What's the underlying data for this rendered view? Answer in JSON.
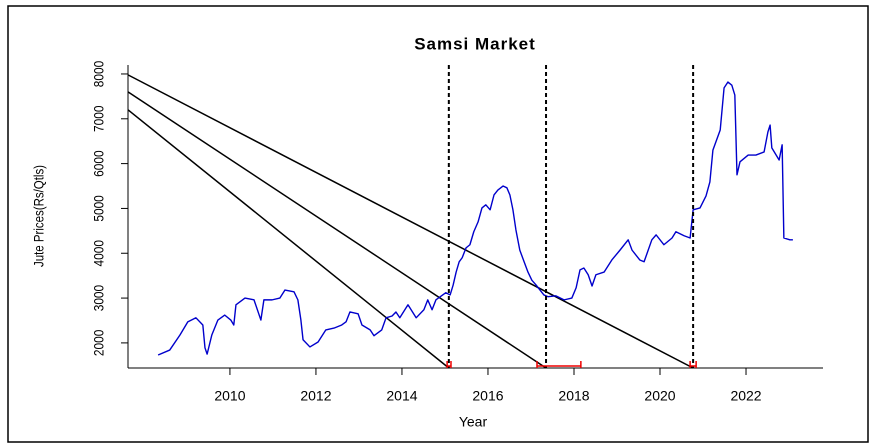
{
  "chart_data": {
    "type": "line",
    "title": "Samsi Market",
    "x_label": "Year",
    "y_label": "Jute Prices(Rs/Qtls)",
    "xlim": [
      2007.63,
      2023.79
    ],
    "ylim": [
      1440,
      8200
    ],
    "xticks": [
      2010,
      2012,
      2014,
      2016,
      2018,
      2020,
      2022
    ],
    "yticks": [
      2000,
      3000,
      4000,
      5000,
      6000,
      7000,
      8000
    ],
    "grid": false,
    "series": [
      {
        "color": "#0000cc",
        "x": [
          2008.33,
          2008.6,
          2008.84,
          2009.02,
          2009.21,
          2009.37,
          2009.42,
          2009.47,
          2009.58,
          2009.72,
          2009.88,
          2010.02,
          2010.09,
          2010.14,
          2010.35,
          2010.56,
          2010.72,
          2010.79,
          2010.98,
          2011.16,
          2011.28,
          2011.49,
          2011.58,
          2011.65,
          2011.7,
          2011.86,
          2012.05,
          2012.23,
          2012.42,
          2012.6,
          2012.7,
          2012.79,
          2012.98,
          2013.07,
          2013.26,
          2013.35,
          2013.53,
          2013.63,
          2013.77,
          2013.86,
          2013.95,
          2014.14,
          2014.33,
          2014.51,
          2014.6,
          2014.7,
          2014.79,
          2015.02,
          2015.12,
          2015.19,
          2015.26,
          2015.33,
          2015.4,
          2015.49,
          2015.58,
          2015.67,
          2015.77,
          2015.86,
          2015.95,
          2016.05,
          2016.14,
          2016.23,
          2016.35,
          2016.44,
          2016.51,
          2016.58,
          2016.65,
          2016.74,
          2016.84,
          2016.93,
          2017.02,
          2017.12,
          2017.21,
          2017.3,
          2017.4,
          2017.58,
          2017.77,
          2017.95,
          2018.05,
          2018.14,
          2018.23,
          2018.33,
          2018.42,
          2018.51,
          2018.7,
          2018.88,
          2019.07,
          2019.26,
          2019.35,
          2019.53,
          2019.63,
          2019.81,
          2019.91,
          2020.09,
          2020.28,
          2020.37,
          2020.56,
          2020.7,
          2020.77,
          2020.93,
          2021.07,
          2021.16,
          2021.23,
          2021.4,
          2021.49,
          2021.58,
          2021.67,
          2021.74,
          2021.79,
          2021.86,
          2022.05,
          2022.23,
          2022.42,
          2022.51,
          2022.56,
          2022.6,
          2022.77,
          2022.84,
          2022.88,
          2023.02,
          2023.09
        ],
        "values": [
          1730,
          1840,
          2180,
          2470,
          2560,
          2400,
          1890,
          1750,
          2180,
          2510,
          2620,
          2510,
          2400,
          2850,
          3000,
          2960,
          2510,
          2960,
          2960,
          3000,
          3180,
          3140,
          2960,
          2510,
          2070,
          1910,
          2020,
          2290,
          2330,
          2400,
          2470,
          2690,
          2650,
          2400,
          2290,
          2160,
          2290,
          2560,
          2600,
          2690,
          2560,
          2850,
          2560,
          2740,
          2960,
          2740,
          2960,
          3120,
          3070,
          3290,
          3580,
          3810,
          3900,
          4120,
          4190,
          4480,
          4700,
          5010,
          5080,
          4970,
          5300,
          5410,
          5500,
          5460,
          5300,
          4970,
          4520,
          4070,
          3810,
          3580,
          3400,
          3290,
          3180,
          3070,
          3030,
          3050,
          2960,
          3000,
          3230,
          3630,
          3670,
          3520,
          3270,
          3520,
          3580,
          3850,
          4070,
          4300,
          4070,
          3850,
          3810,
          4300,
          4410,
          4190,
          4340,
          4480,
          4390,
          4340,
          4970,
          5010,
          5280,
          5590,
          6300,
          6750,
          7690,
          7820,
          7750,
          7530,
          5750,
          6040,
          6190,
          6190,
          6260,
          6710,
          6860,
          6350,
          6080,
          6420,
          4340,
          4300,
          4300
        ]
      }
    ],
    "breakpoints": [
      2015.09,
      2017.35,
      2020.77
    ],
    "breakpoint_ci": [
      [
        2015.05,
        2015.14
      ],
      [
        2017.14,
        2018.16
      ],
      [
        2020.7,
        2020.84
      ]
    ],
    "trend_lines": [
      {
        "x": [
          2007.63,
          2020.77
        ],
        "y": [
          7980,
          1440
        ]
      },
      {
        "x": [
          2007.63,
          2017.35
        ],
        "y": [
          7600,
          1440
        ]
      },
      {
        "x": [
          2007.63,
          2015.09
        ],
        "y": [
          7200,
          1440
        ]
      }
    ]
  }
}
